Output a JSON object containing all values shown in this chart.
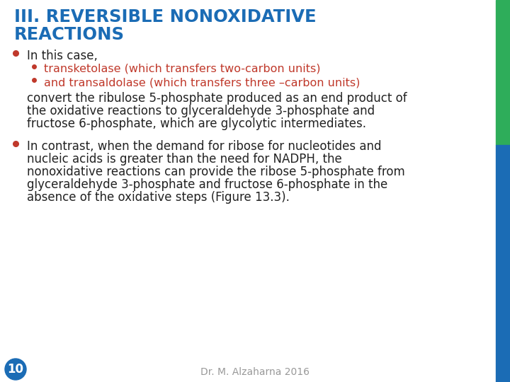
{
  "title_line1": "III. REVERSIBLE NONOXIDATIVE",
  "title_line2": "REACTIONS",
  "title_color": "#1B6CB5",
  "background_color": "#FFFFFF",
  "right_bar_green": "#2EAD5A",
  "right_bar_blue": "#1B6CB5",
  "slide_number": "10",
  "slide_number_bg": "#1B6CB5",
  "slide_number_text_color": "#FFFFFF",
  "footer_text": "Dr. M. Alzaharna 2016",
  "footer_color": "#999999",
  "bullet1_text": "In this case,",
  "bullet1_color": "#222222",
  "sub_bullet1_text": "transketolase (which transfers two-carbon units)",
  "sub_bullet2_text": "and transaldolase (which transfers three –carbon units)",
  "sub_bullet_color": "#C0392B",
  "body1_line1": "convert the ribulose 5-phosphate produced as an end product of",
  "body1_line2": "the oxidative reactions to glyceraldehyde 3-phosphate and",
  "body1_line3": "fructose 6-phosphate, which are glycolytic intermediates.",
  "body1_color": "#222222",
  "bullet2_line1": "In contrast, when the demand for ribose for nucleotides and",
  "bullet2_line2": "nucleic acids is greater than the need for NADPH, the",
  "bullet2_line3": "nonoxidative reactions can provide the ribose 5-phosphate from",
  "bullet2_line4": "glyceraldehyde 3-phosphate and fructose 6-phosphate in the",
  "bullet2_line5": "absence of the oxidative steps (Figure 13.3).",
  "bullet2_color": "#222222",
  "title_fontsize": 17.5,
  "bullet_fontsize": 12,
  "sub_bullet_fontsize": 11.5,
  "body_fontsize": 12,
  "footer_fontsize": 10,
  "slide_num_fontsize": 12
}
